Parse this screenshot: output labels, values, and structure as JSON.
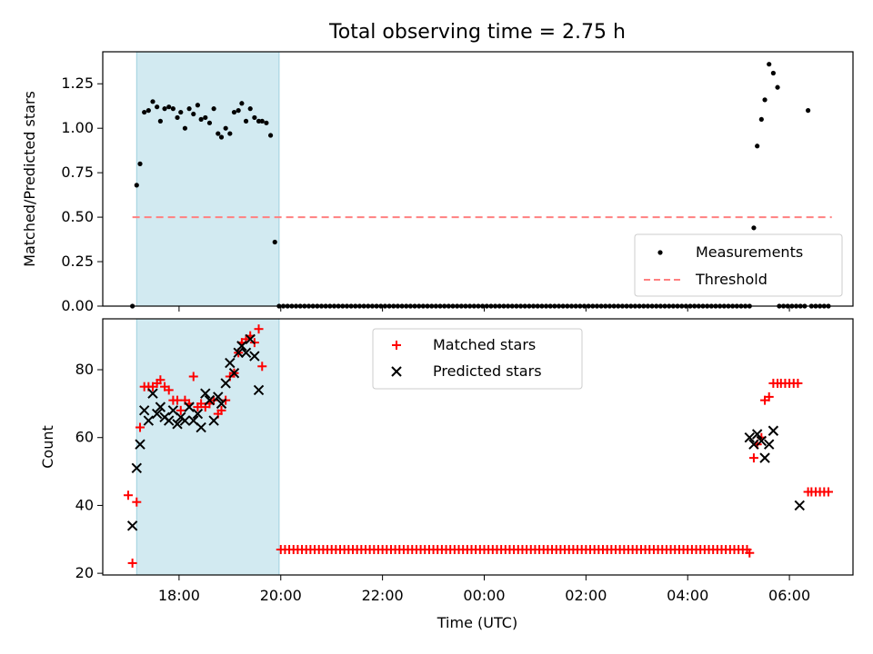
{
  "chart_data": [
    {
      "type": "scatter",
      "title": "Total observing time = 2.75 h",
      "xlabel": "",
      "ylabel": "Matched/Predicted stars",
      "ylim": [
        0,
        1.43
      ],
      "yticks": [
        0.0,
        0.25,
        0.5,
        0.75,
        1.0,
        1.25
      ],
      "ytick_labels": [
        "0.00",
        "0.25",
        "0.50",
        "0.75",
        "1.00",
        "1.25"
      ],
      "shaded_span": {
        "start": "17:10",
        "end": "19:58",
        "color": "#add8e6"
      },
      "legend_position": "lower-right",
      "series": [
        {
          "name": "Measurements",
          "marker": "dot",
          "color": "#000000",
          "points": [
            [
              "17:05",
              0.0
            ],
            [
              "17:10",
              0.68
            ],
            [
              "17:14",
              0.8
            ],
            [
              "17:19",
              1.09
            ],
            [
              "17:24",
              1.1
            ],
            [
              "17:29",
              1.15
            ],
            [
              "17:34",
              1.12
            ],
            [
              "17:38",
              1.04
            ],
            [
              "17:43",
              1.11
            ],
            [
              "17:48",
              1.12
            ],
            [
              "17:53",
              1.11
            ],
            [
              "17:58",
              1.06
            ],
            [
              "18:02",
              1.09
            ],
            [
              "18:07",
              1.0
            ],
            [
              "18:12",
              1.11
            ],
            [
              "18:17",
              1.08
            ],
            [
              "18:22",
              1.13
            ],
            [
              "18:26",
              1.05
            ],
            [
              "18:31",
              1.06
            ],
            [
              "18:36",
              1.03
            ],
            [
              "18:41",
              1.11
            ],
            [
              "18:46",
              0.97
            ],
            [
              "18:50",
              0.95
            ],
            [
              "18:55",
              1.0
            ],
            [
              "19:00",
              0.97
            ],
            [
              "19:05",
              1.09
            ],
            [
              "19:10",
              1.1
            ],
            [
              "19:14",
              1.14
            ],
            [
              "19:19",
              1.04
            ],
            [
              "19:24",
              1.11
            ],
            [
              "19:29",
              1.06
            ],
            [
              "19:34",
              1.04
            ],
            [
              "19:38",
              1.04
            ],
            [
              "19:43",
              1.03
            ],
            [
              "19:48",
              0.96
            ],
            [
              "19:53",
              0.36
            ],
            [
              "05:18",
              0.44
            ],
            [
              "05:22",
              0.9
            ],
            [
              "05:27",
              1.05
            ],
            [
              "05:31",
              1.16
            ],
            [
              "05:36",
              1.36
            ],
            [
              "05:41",
              1.31
            ],
            [
              "05:46",
              1.23
            ],
            [
              "06:22",
              1.1
            ]
          ],
          "zero_runs": [
            {
              "start": "19:58",
              "end": "05:13",
              "step_min": 5,
              "value": 0
            },
            {
              "start": "05:48",
              "end": "06:18",
              "step_min": 5,
              "value": 0
            },
            {
              "start": "06:26",
              "end": "06:48",
              "step_min": 5,
              "value": 0
            }
          ]
        },
        {
          "name": "Threshold",
          "marker": "dashed-line",
          "color": "#ff8080",
          "points": [
            [
              "17:05",
              0.5
            ],
            [
              "06:50",
              0.5
            ]
          ]
        }
      ]
    },
    {
      "type": "scatter",
      "title": "",
      "xlabel": "Time (UTC)",
      "ylabel": "Count",
      "ylim": [
        19.5,
        95
      ],
      "yticks": [
        20,
        40,
        60,
        80
      ],
      "ytick_labels": [
        "20",
        "40",
        "60",
        "80"
      ],
      "xlim": [
        "16:30",
        "07:15"
      ],
      "xticks": [
        "18:00",
        "20:00",
        "22:00",
        "00:00",
        "02:00",
        "04:00",
        "06:00"
      ],
      "shaded_span": {
        "start": "17:10",
        "end": "19:58",
        "color": "#add8e6"
      },
      "legend_position": "upper-center",
      "series": [
        {
          "name": "Matched stars",
          "marker": "plus",
          "color": "#ff0000",
          "points": [
            [
              "17:00",
              43
            ],
            [
              "17:05",
              23
            ],
            [
              "17:10",
              41
            ],
            [
              "17:14",
              63
            ],
            [
              "17:19",
              75
            ],
            [
              "17:24",
              75
            ],
            [
              "17:29",
              75
            ],
            [
              "17:34",
              76
            ],
            [
              "17:38",
              77
            ],
            [
              "17:43",
              75
            ],
            [
              "17:48",
              74
            ],
            [
              "17:53",
              71
            ],
            [
              "17:58",
              71
            ],
            [
              "18:02",
              68
            ],
            [
              "18:07",
              71
            ],
            [
              "18:12",
              70
            ],
            [
              "18:17",
              78
            ],
            [
              "18:22",
              69
            ],
            [
              "18:26",
              70
            ],
            [
              "18:31",
              69
            ],
            [
              "18:36",
              70
            ],
            [
              "18:41",
              71
            ],
            [
              "18:46",
              67
            ],
            [
              "18:50",
              68
            ],
            [
              "18:55",
              71
            ],
            [
              "19:00",
              78
            ],
            [
              "19:05",
              79
            ],
            [
              "19:10",
              85
            ],
            [
              "19:14",
              88
            ],
            [
              "19:19",
              89
            ],
            [
              "19:24",
              90
            ],
            [
              "19:29",
              88
            ],
            [
              "19:34",
              92
            ],
            [
              "19:38",
              81
            ],
            [
              "05:18",
              54
            ],
            [
              "05:22",
              58
            ],
            [
              "05:27",
              60
            ],
            [
              "05:31",
              71
            ],
            [
              "05:36",
              72
            ],
            [
              "05:41",
              76
            ],
            [
              "05:46",
              76
            ],
            [
              "05:50",
              76
            ],
            [
              "05:55",
              76
            ],
            [
              "06:00",
              76
            ],
            [
              "06:05",
              76
            ],
            [
              "06:10",
              76
            ],
            [
              "06:22",
              44
            ],
            [
              "06:26",
              44
            ],
            [
              "06:31",
              44
            ],
            [
              "06:36",
              44
            ],
            [
              "06:41",
              44
            ],
            [
              "06:46",
              44
            ]
          ],
          "constant_runs": [
            {
              "start": "20:00",
              "end": "05:13",
              "step_min": 5,
              "value": 27
            },
            {
              "start": "05:13",
              "end": "05:13",
              "step_min": 5,
              "value": 26
            }
          ]
        },
        {
          "name": "Predicted stars",
          "marker": "x",
          "color": "#000000",
          "points": [
            [
              "17:05",
              34
            ],
            [
              "17:10",
              51
            ],
            [
              "17:14",
              58
            ],
            [
              "17:19",
              68
            ],
            [
              "17:24",
              65
            ],
            [
              "17:29",
              73
            ],
            [
              "17:34",
              67
            ],
            [
              "17:38",
              69
            ],
            [
              "17:43",
              66
            ],
            [
              "17:48",
              65
            ],
            [
              "17:53",
              68
            ],
            [
              "17:58",
              64
            ],
            [
              "18:02",
              66
            ],
            [
              "18:07",
              65
            ],
            [
              "18:12",
              69
            ],
            [
              "18:17",
              65
            ],
            [
              "18:22",
              67
            ],
            [
              "18:26",
              63
            ],
            [
              "18:31",
              73
            ],
            [
              "18:36",
              71
            ],
            [
              "18:41",
              65
            ],
            [
              "18:46",
              72
            ],
            [
              "18:50",
              70
            ],
            [
              "18:55",
              76
            ],
            [
              "19:00",
              82
            ],
            [
              "19:05",
              79
            ],
            [
              "19:10",
              85
            ],
            [
              "19:14",
              87
            ],
            [
              "19:19",
              85
            ],
            [
              "19:24",
              89
            ],
            [
              "19:29",
              84
            ],
            [
              "19:34",
              74
            ],
            [
              "05:13",
              60
            ],
            [
              "05:18",
              58
            ],
            [
              "05:22",
              61
            ],
            [
              "05:27",
              59
            ],
            [
              "05:31",
              54
            ],
            [
              "05:36",
              58
            ],
            [
              "05:41",
              62
            ],
            [
              "06:12",
              40
            ]
          ]
        }
      ]
    }
  ]
}
